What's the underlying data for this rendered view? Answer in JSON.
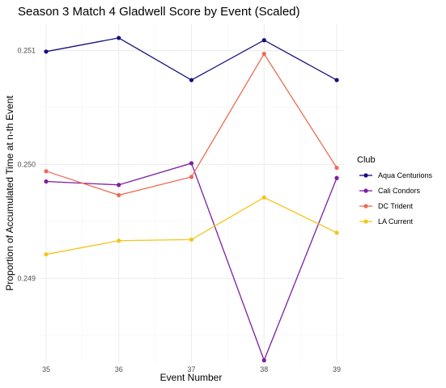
{
  "chart_data": {
    "type": "line",
    "title": "Season 3 Match 4 Gladwell Score by Event (Scaled)",
    "xlabel": "Event Number",
    "ylabel": "Proportion of Accumulated Time at n-th Event",
    "x": [
      35,
      36,
      37,
      38,
      39
    ],
    "xticks": [
      "35",
      "36",
      "37",
      "38",
      "39"
    ],
    "yticks": [
      {
        "value": 0.249,
        "label": "0.249"
      },
      {
        "value": 0.25,
        "label": "0.250"
      },
      {
        "value": 0.251,
        "label": "0.251"
      }
    ],
    "xlim": [
      34.9,
      39.1
    ],
    "ylim": [
      0.24825,
      0.25123
    ],
    "grid": true,
    "legend": {
      "title": "Club",
      "position": "right"
    },
    "series": [
      {
        "name": "Aqua Centurions",
        "color": "#150e7d",
        "values": [
          0.25099,
          0.25111,
          0.25074,
          0.25109,
          0.25074
        ]
      },
      {
        "name": "Cali Condors",
        "color": "#7b1fa2",
        "values": [
          0.24985,
          0.24982,
          0.25001,
          0.24828,
          0.24988
        ]
      },
      {
        "name": "DC Trident",
        "color": "#ec6b56",
        "values": [
          0.24994,
          0.24973,
          0.24989,
          0.25097,
          0.24997
        ]
      },
      {
        "name": "LA Current",
        "color": "#f5c518",
        "values": [
          0.24921,
          0.24933,
          0.24934,
          0.24971,
          0.2494
        ]
      }
    ]
  }
}
